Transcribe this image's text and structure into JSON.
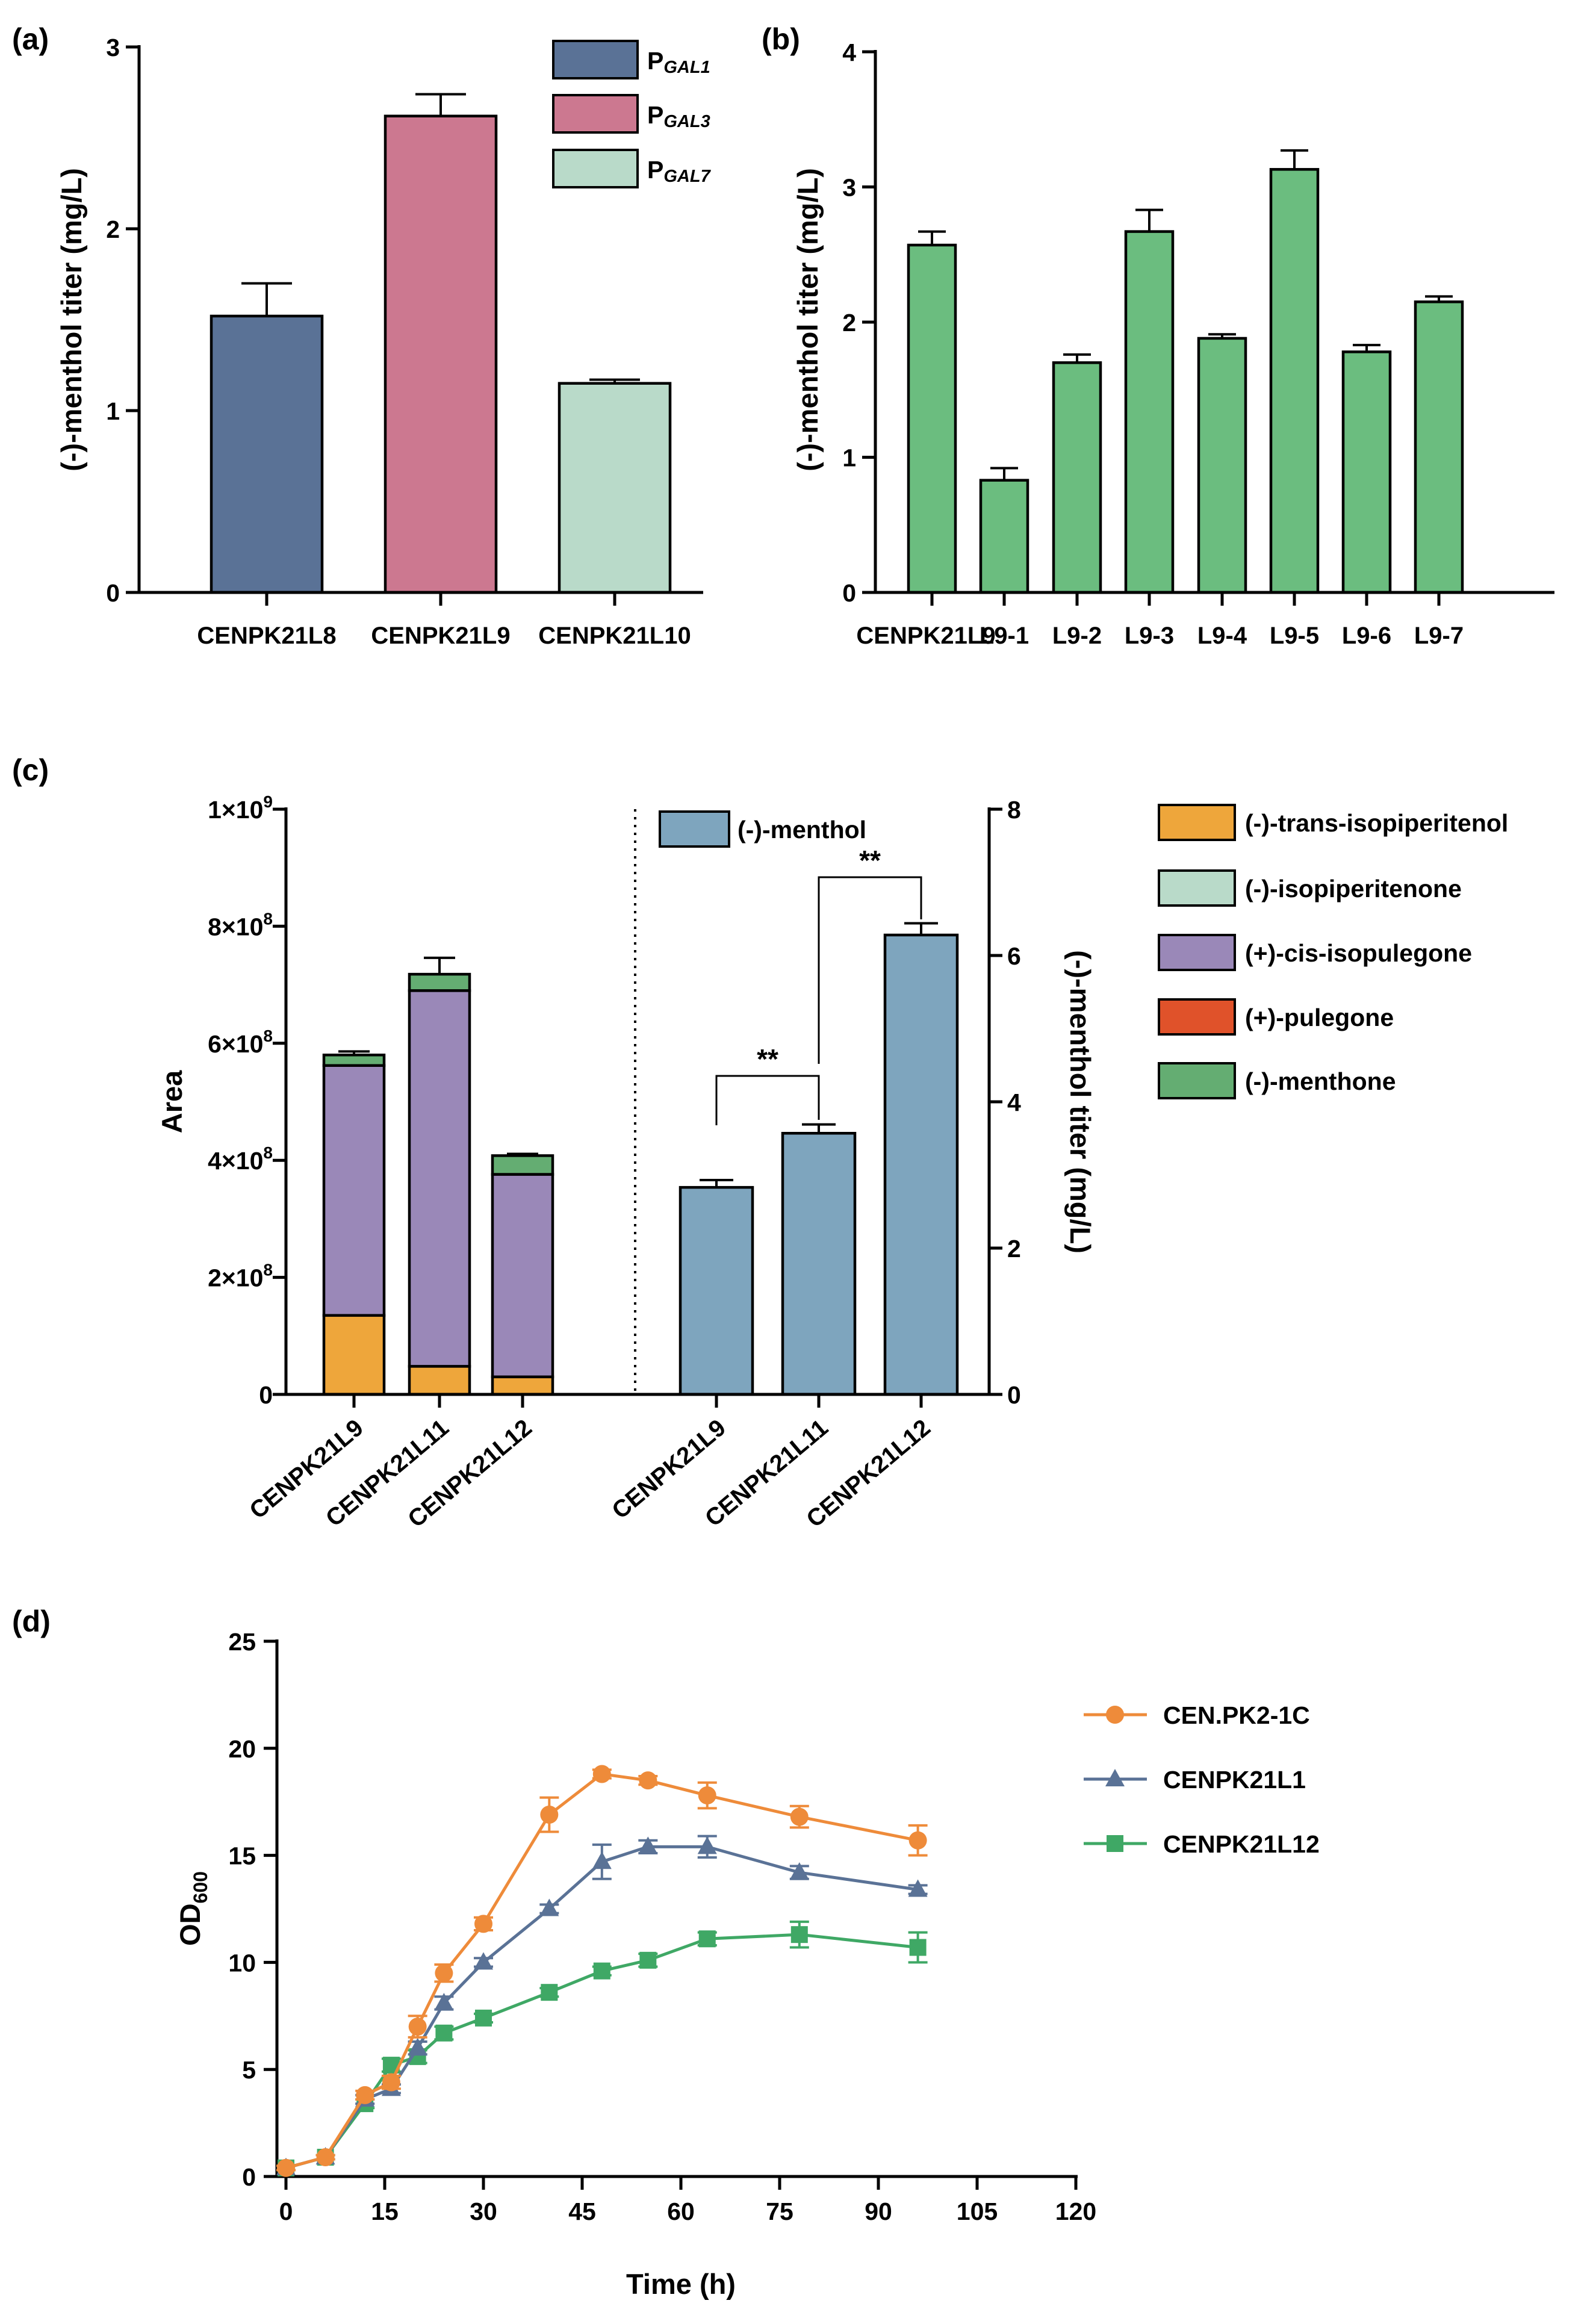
{
  "colors": {
    "gal1": "#5a7296",
    "gal3": "#cc7890",
    "gal7": "#b9dac9",
    "green": "#6bbd7f",
    "menthol": "#7ea5be",
    "trans_isopiperitenol": "#eea63b",
    "isopiperitenone": "#b9dac9",
    "cis_isopulegone": "#9a88b8",
    "pulegone": "#e0522a",
    "menthone": "#64ad72",
    "orange": "#ee8b3a",
    "blue": "#5a7296",
    "greenline": "#3fa865"
  },
  "chart_data": [
    {
      "panel": "(a)",
      "type": "bar",
      "ylabel": "(-)-menthol titer (mg/L)",
      "ylim": [
        0,
        3
      ],
      "yticks": [
        "0",
        "1",
        "2",
        "3"
      ],
      "categories": [
        "CENPK21L8",
        "CENPK21L9",
        "CENPK21L10"
      ],
      "values": [
        1.52,
        2.62,
        1.15
      ],
      "errors": [
        0.18,
        0.12,
        0.02
      ],
      "legend": [
        {
          "prefix": "P",
          "sub": "GAL1"
        },
        {
          "prefix": "P",
          "sub": "GAL3"
        },
        {
          "prefix": "P",
          "sub": "GAL7"
        }
      ]
    },
    {
      "panel": "(b)",
      "type": "bar",
      "ylabel": "(-)-menthol titer (mg/L)",
      "ylim": [
        0,
        4
      ],
      "yticks": [
        "0",
        "1",
        "2",
        "3",
        "4"
      ],
      "categories": [
        "CENPK21L9",
        "L9-1",
        "L9-2",
        "L9-3",
        "L9-4",
        "L9-5",
        "L9-6",
        "L9-7"
      ],
      "values": [
        2.57,
        0.83,
        1.7,
        2.67,
        1.88,
        3.13,
        1.78,
        2.15
      ],
      "errors": [
        0.1,
        0.09,
        0.06,
        0.16,
        0.03,
        0.14,
        0.05,
        0.04
      ]
    },
    {
      "panel": "(c)",
      "type": "bar",
      "ylabel_left": "Area",
      "ylabel_right": "(-)-menthol titer (mg/L)",
      "ylim_left": [
        0,
        1000000000
      ],
      "yticks_left": [
        {
          "base": "0",
          "exp": ""
        },
        {
          "base": "2×10",
          "exp": "8"
        },
        {
          "base": "4×10",
          "exp": "8"
        },
        {
          "base": "6×10",
          "exp": "8"
        },
        {
          "base": "8×10",
          "exp": "8"
        },
        {
          "base": "1×10",
          "exp": "9"
        }
      ],
      "ylim_right": [
        0,
        8
      ],
      "yticks_right": [
        "0",
        "2",
        "4",
        "6",
        "8"
      ],
      "stacked": {
        "categories": [
          "CENPK21L9",
          "CENPK21L11",
          "CENPK21L12"
        ],
        "series": [
          {
            "name": "(-)-trans-isopiperitenol",
            "color_key": "trans_isopiperitenol",
            "values": [
              135000000,
              48000000,
              30000000
            ],
            "errors": [
              12000000,
              5000000,
              3000000
            ]
          },
          {
            "name": "(-)-isopiperitenone",
            "color_key": "isopiperitenone",
            "values": [
              0,
              0,
              0
            ]
          },
          {
            "name": "(+)-cis-isopulegone",
            "color_key": "cis_isopulegone",
            "values": [
              427000000,
              642000000,
              346000000
            ]
          },
          {
            "name": "(+)-pulegone",
            "color_key": "pulegone",
            "values": [
              0,
              0,
              0
            ]
          },
          {
            "name": "(-)-menthone",
            "color_key": "menthone",
            "values": [
              18000000,
              28000000,
              32000000
            ],
            "errors": [
              6000000,
              28000000,
              3000000
            ]
          }
        ]
      },
      "menthol": {
        "legend": "(-)-menthol",
        "categories": [
          "CENPK21L9",
          "CENPK21L11",
          "CENPK21L12"
        ],
        "values": [
          2.83,
          3.57,
          6.28
        ],
        "errors": [
          0.1,
          0.12,
          0.16
        ]
      },
      "significance": [
        {
          "from": 0,
          "to": 1,
          "label": "**"
        },
        {
          "from": 1,
          "to": 2,
          "label": "**"
        }
      ]
    },
    {
      "panel": "(d)",
      "type": "line",
      "xlabel": "Time (h)",
      "ylabel_base": "OD",
      "ylabel_sub": "600",
      "xlim": [
        0,
        120
      ],
      "ylim": [
        0,
        25
      ],
      "xticks": [
        "0",
        "15",
        "30",
        "45",
        "60",
        "75",
        "90",
        "105",
        "120"
      ],
      "yticks": [
        "0",
        "5",
        "10",
        "15",
        "20",
        "25"
      ],
      "x": [
        0,
        6,
        12,
        16,
        20,
        24,
        30,
        40,
        48,
        55,
        64,
        78,
        96
      ],
      "series": [
        {
          "name": "CEN.PK2-1C",
          "marker": "circle",
          "color_key": "orange",
          "values": [
            0.4,
            0.9,
            3.8,
            4.4,
            7.0,
            9.5,
            11.8,
            16.9,
            18.8,
            18.5,
            17.8,
            16.8,
            15.7
          ],
          "errors": [
            0.1,
            0.1,
            0.2,
            0.3,
            0.5,
            0.4,
            0.3,
            0.8,
            0.2,
            0.2,
            0.6,
            0.5,
            0.7
          ]
        },
        {
          "name": "CENPK21L1",
          "marker": "triangle",
          "color_key": "blue",
          "values": [
            0.4,
            0.9,
            3.6,
            4.1,
            6.0,
            8.1,
            10.0,
            12.5,
            14.7,
            15.4,
            15.4,
            14.2,
            13.4
          ],
          "errors": [
            0.1,
            0.1,
            0.2,
            0.2,
            0.3,
            0.3,
            0.2,
            0.2,
            0.8,
            0.3,
            0.5,
            0.3,
            0.2
          ]
        },
        {
          "name": "CENPK21L12",
          "marker": "square",
          "color_key": "greenline",
          "values": [
            0.4,
            0.9,
            3.4,
            5.2,
            5.6,
            6.7,
            7.4,
            8.6,
            9.6,
            10.1,
            11.1,
            11.3,
            10.7
          ],
          "errors": [
            0.1,
            0.1,
            0.2,
            0.3,
            0.3,
            0.3,
            0.2,
            0.2,
            0.2,
            0.3,
            0.3,
            0.6,
            0.7
          ]
        }
      ]
    }
  ]
}
